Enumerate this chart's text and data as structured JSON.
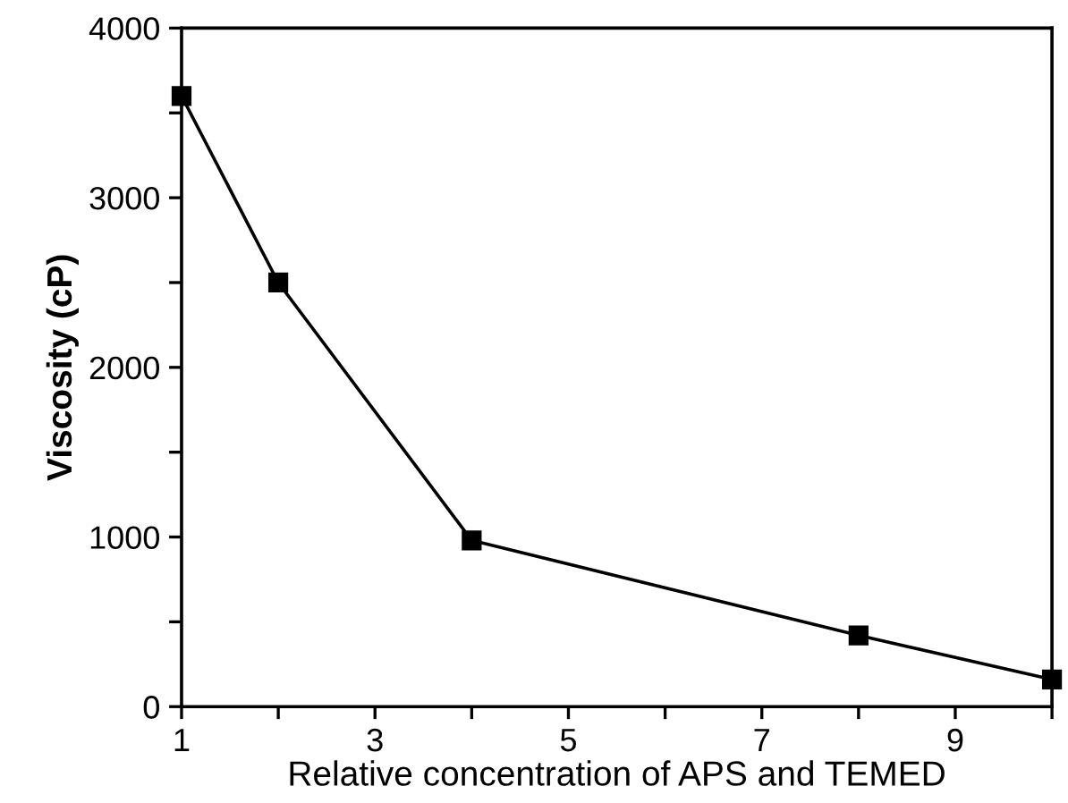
{
  "chart_data": {
    "type": "line",
    "xlabel": "Relative concentration of APS and TEMED",
    "ylabel": "Viscosity (cP)",
    "x": [
      1,
      2,
      4,
      8,
      10
    ],
    "series": [
      {
        "color": "#000000",
        "values": [
          3600,
          2500,
          980,
          420,
          160
        ]
      }
    ],
    "xlim": [
      1,
      10
    ],
    "ylim": [
      0,
      4000
    ],
    "xticks": [
      1,
      {
        "value": 2,
        "label": null
      },
      3,
      {
        "value": 4,
        "label": null
      },
      5,
      {
        "value": 6,
        "label": null
      },
      7,
      {
        "value": 8,
        "label": null
      },
      9,
      {
        "value": 10,
        "label": null
      }
    ],
    "yticks": [
      0,
      {
        "value": 500,
        "label": null
      },
      1000,
      {
        "value": 1500,
        "label": null
      },
      2000,
      {
        "value": 2500,
        "label": null
      },
      3000,
      {
        "value": 3500,
        "label": null
      },
      4000
    ],
    "grid": false,
    "marker": "square",
    "line_style": "solid"
  }
}
